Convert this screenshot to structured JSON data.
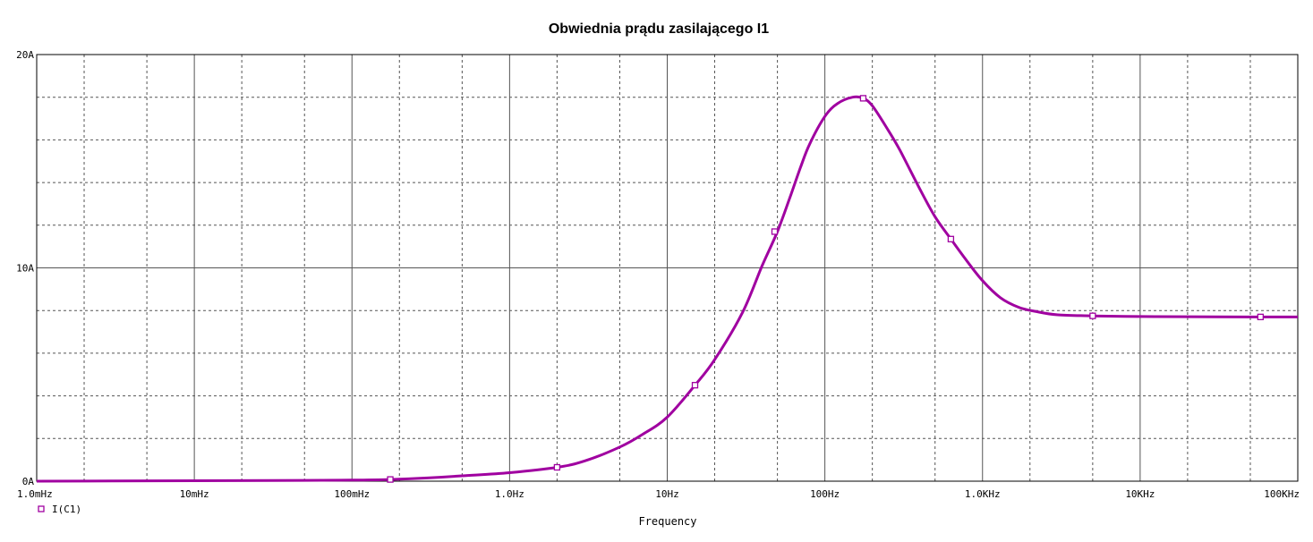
{
  "chart_data": {
    "type": "line",
    "title": "Obwiednia prądu zasilającego I1",
    "xlabel": "Frequency",
    "ylabel": "",
    "x_scale": "log",
    "xlim": [
      0.001,
      100000
    ],
    "ylim": [
      0,
      20
    ],
    "grid": true,
    "legend_position": "bottom-left",
    "x_ticks": [
      {
        "value": 0.001,
        "label": "1.0mHz"
      },
      {
        "value": 0.01,
        "label": "10mHz"
      },
      {
        "value": 0.1,
        "label": "100mHz"
      },
      {
        "value": 1,
        "label": "1.0Hz"
      },
      {
        "value": 10,
        "label": "10Hz"
      },
      {
        "value": 100,
        "label": "100Hz"
      },
      {
        "value": 1000,
        "label": "1.0KHz"
      },
      {
        "value": 10000,
        "label": "10KHz"
      },
      {
        "value": 100000,
        "label": "100KHz"
      }
    ],
    "y_ticks": [
      {
        "value": 0,
        "label": "0A"
      },
      {
        "value": 10,
        "label": "10A"
      },
      {
        "value": 20,
        "label": "20A"
      }
    ],
    "series": [
      {
        "name": "I(C1)",
        "color": "#a000a0",
        "marker": "hollow-square",
        "x": [
          0.001,
          0.003,
          0.01,
          0.03,
          0.1,
          0.175,
          0.3,
          0.5,
          1,
          2,
          3,
          5,
          7,
          10,
          15,
          20,
          30,
          40,
          50,
          60,
          70,
          80,
          100,
          120,
          150,
          175,
          200,
          250,
          300,
          400,
          500,
          630,
          800,
          1000,
          1300,
          1700,
          2200,
          3000,
          5000,
          10000,
          20000,
          50000,
          58000,
          100000
        ],
        "y": [
          0.0,
          0.01,
          0.02,
          0.03,
          0.05,
          0.08,
          0.15,
          0.25,
          0.4,
          0.65,
          0.95,
          1.6,
          2.2,
          3.0,
          4.5,
          5.7,
          7.9,
          10.1,
          11.7,
          13.3,
          14.7,
          15.8,
          17.1,
          17.7,
          18.0,
          17.95,
          17.6,
          16.5,
          15.5,
          13.7,
          12.4,
          11.35,
          10.3,
          9.4,
          8.6,
          8.15,
          7.95,
          7.8,
          7.75,
          7.72,
          7.71,
          7.7,
          7.7,
          7.7
        ],
        "markers_x": [
          0.175,
          2,
          15,
          48,
          175,
          630,
          5000,
          58000
        ],
        "markers_y": [
          0.08,
          0.65,
          4.5,
          11.7,
          17.95,
          11.35,
          7.75,
          7.7
        ]
      }
    ]
  }
}
